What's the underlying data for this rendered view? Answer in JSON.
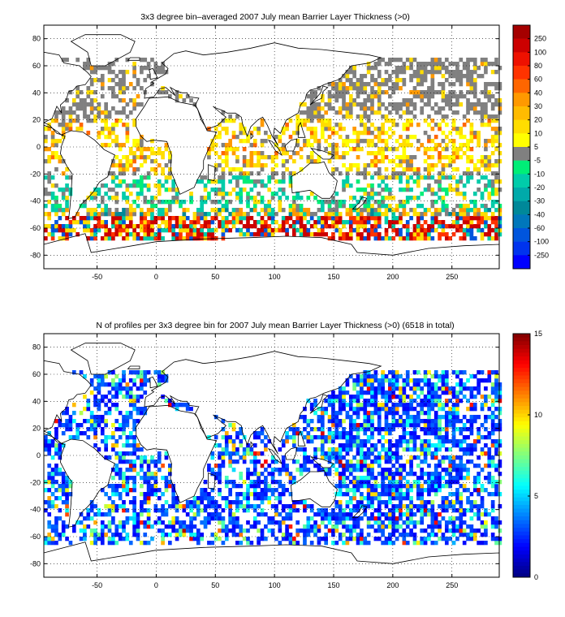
{
  "chart_data": [
    {
      "type": "heatmap",
      "title": "3x3 degree bin–averaged 2007 July mean Barrier Layer Thickness (>0)",
      "xlim": [
        -95,
        290
      ],
      "ylim": [
        -90,
        90
      ],
      "xticks": [
        -50,
        0,
        50,
        100,
        150,
        200,
        250
      ],
      "yticks": [
        80,
        60,
        40,
        20,
        0,
        -20,
        -40,
        -60,
        -80
      ],
      "grid": "dotted",
      "colorbar": {
        "position": "right",
        "labels": [
          "250",
          "100",
          "80",
          "60",
          "40",
          "30",
          "20",
          "10",
          "5",
          "-5",
          "-10",
          "-20",
          "-30",
          "-40",
          "-60",
          "-100",
          "-250"
        ],
        "colors": [
          "#a50000",
          "#cc0000",
          "#ee1100",
          "#ff3300",
          "#ff6600",
          "#ff9900",
          "#ffbb00",
          "#ffdd00",
          "#ffff00",
          "#808080",
          "#00ee77",
          "#00ccaa",
          "#00aaaa",
          "#008899",
          "#0077bb",
          "#0055dd",
          "#0033ee",
          "#0000ff"
        ]
      },
      "bin_size_deg": 3
    },
    {
      "type": "heatmap",
      "title": "N of profiles per 3x3 degree bin for 2007 July mean Barrier Layer Thickness (>0) (6518 in total)",
      "xlim": [
        -95,
        290
      ],
      "ylim": [
        -90,
        90
      ],
      "xticks": [
        -50,
        0,
        50,
        100,
        150,
        200,
        250
      ],
      "yticks": [
        80,
        60,
        40,
        20,
        0,
        -20,
        -40,
        -60,
        -80
      ],
      "grid": "dotted",
      "total_profiles": 6518,
      "colorbar": {
        "position": "right",
        "min": 0,
        "max": 15,
        "labels": [
          "15",
          "10",
          "5",
          "0"
        ],
        "colormap": "jet"
      },
      "bin_size_deg": 3
    }
  ]
}
